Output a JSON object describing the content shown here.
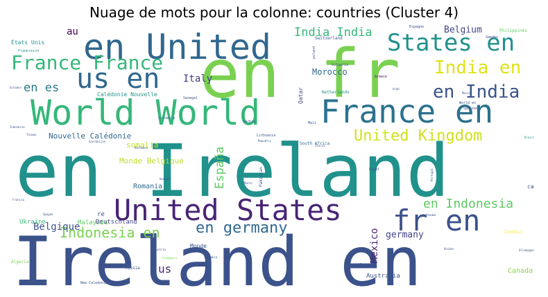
{
  "title": "Nuage de mots pour la colonne: countries (Cluster 4)",
  "chart_data": {
    "type": "wordcloud",
    "title": "Nuage de mots pour la colonne: countries (Cluster 4)",
    "background": "#ffffff",
    "colormap": "viridis",
    "words": [
      {
        "text": "en Ireland",
        "size": 100,
        "color": "#21918c"
      },
      {
        "text": "Ireland en",
        "size": 95,
        "color": "#3b528b"
      },
      {
        "text": "en fr",
        "size": 92,
        "color": "#7ad151"
      },
      {
        "text": "World World",
        "size": 50,
        "color": "#35b779"
      },
      {
        "text": "en United",
        "size": 50,
        "color": "#31688e"
      },
      {
        "text": "France en",
        "size": 46,
        "color": "#2c728e"
      },
      {
        "text": "United States",
        "size": 42,
        "color": "#482475"
      },
      {
        "text": "fr en",
        "size": 42,
        "color": "#3b528b"
      },
      {
        "text": "us en",
        "size": 40,
        "color": "#31688e"
      },
      {
        "text": "States en",
        "size": 34,
        "color": "#21918c"
      },
      {
        "text": "France France",
        "size": 28,
        "color": "#35b779"
      },
      {
        "text": "India en",
        "size": 26,
        "color": "#dde318"
      },
      {
        "text": "en India",
        "size": 26,
        "color": "#3b528b"
      },
      {
        "text": "United Kingdom",
        "size": 22,
        "color": "#d0e11c"
      },
      {
        "text": "en germany",
        "size": 22,
        "color": "#31688e"
      },
      {
        "text": "Indonesia en",
        "size": 20,
        "color": "#7ad151"
      },
      {
        "text": "en Indonesia",
        "size": 18,
        "color": "#5ec962"
      },
      {
        "text": "España",
        "size": 17,
        "color": "#5ec962"
      },
      {
        "text": "India India",
        "size": 17,
        "color": "#35b779"
      },
      {
        "text": "en es",
        "size": 17,
        "color": "#2a788e"
      },
      {
        "text": "Mexico",
        "size": 14,
        "color": "#482878"
      },
      {
        "text": "Belgique",
        "size": 14,
        "color": "#3b528b"
      },
      {
        "text": "Italy",
        "size": 14,
        "color": "#443983"
      },
      {
        "text": "Belgium",
        "size": 13,
        "color": "#414487"
      },
      {
        "text": "germany",
        "size": 13,
        "color": "#414487"
      },
      {
        "text": "us",
        "size": 16,
        "color": "#482475"
      },
      {
        "text": "au",
        "size": 14,
        "color": "#440154"
      },
      {
        "text": "Morocco",
        "size": 12,
        "color": "#31688e"
      },
      {
        "text": "Nouvelle Calédonie",
        "size": 11,
        "color": "#31688e"
      },
      {
        "text": "Monde Belgique",
        "size": 11,
        "color": "#bddf26"
      },
      {
        "text": "somalia",
        "size": 11,
        "color": "#bddf26"
      },
      {
        "text": "Romania",
        "size": 10,
        "color": "#31688e"
      },
      {
        "text": "Deutschland",
        "size": 9,
        "color": "#414487"
      },
      {
        "text": "Malaysia",
        "size": 9,
        "color": "#5ec962"
      },
      {
        "text": "Ukraine",
        "size": 9,
        "color": "#35b779"
      },
      {
        "text": "Canada",
        "size": 10,
        "color": "#86d549"
      },
      {
        "text": "Australia",
        "size": 9,
        "color": "#3b528b"
      },
      {
        "text": "Calédonie Nouvelle",
        "size": 8,
        "color": "#21918c"
      },
      {
        "text": "États Unis",
        "size": 8,
        "color": "#21918c"
      },
      {
        "text": "Qatar",
        "size": 8,
        "color": "#414487"
      },
      {
        "text": "Monde",
        "size": 8,
        "color": "#3b528b"
      },
      {
        "text": "re",
        "size": 9,
        "color": "#3b528b"
      },
      {
        "text": "ca",
        "size": 8,
        "color": "#3b528b"
      },
      {
        "text": "Netherlands",
        "size": 6,
        "color": "#21918c"
      },
      {
        "text": "South Africa",
        "size": 6,
        "color": "#31688e"
      },
      {
        "text": "Switzerland",
        "size": 6,
        "color": "#3b528b"
      },
      {
        "text": "Philippines",
        "size": 6,
        "color": "#5ec962"
      },
      {
        "text": "Frankreich",
        "size": 5,
        "color": "#21918c"
      },
      {
        "text": "Colombia",
        "size": 5,
        "color": "#31688e"
      },
      {
        "text": "Lithuania",
        "size": 5,
        "color": "#3b528b"
      },
      {
        "text": "Greece",
        "size": 5,
        "color": "#440154"
      },
      {
        "text": "Chile",
        "size": 6,
        "color": "#3b528b"
      },
      {
        "text": "New Caledonia",
        "size": 5,
        "color": "#3b528b"
      },
      {
        "text": "Algeria",
        "size": 6,
        "color": "#7ad151"
      },
      {
        "text": "russia",
        "size": 6,
        "color": "#3b528b"
      },
      {
        "text": "Czechia",
        "size": 6,
        "color": "#fde725"
      },
      {
        "text": "Pakistan",
        "size": 6,
        "color": "#3b528b"
      },
      {
        "text": "Espagne",
        "size": 5,
        "color": "#3b528b"
      },
      {
        "text": "Senegal",
        "size": 5,
        "color": "#3b528b"
      },
      {
        "text": "Serbia",
        "size": 5,
        "color": "#3b528b"
      },
      {
        "text": "Mali",
        "size": 5,
        "color": "#3b528b"
      },
      {
        "text": "Egypt",
        "size": 5,
        "color": "#3b528b"
      },
      {
        "text": "Sweden",
        "size": 5,
        "color": "#3b528b"
      },
      {
        "text": "Spanien",
        "size": 5,
        "color": "#3b528b"
      },
      {
        "text": "World en",
        "size": 5,
        "color": "#3b528b"
      },
      {
        "text": "Mexico",
        "size": 4,
        "color": "#3b528b"
      },
      {
        "text": "bulgaria",
        "size": 5,
        "color": "#3b528b"
      },
      {
        "text": "poland",
        "size": 5,
        "color": "#3b528b"
      },
      {
        "text": "Hungary",
        "size": 4,
        "color": "#3b528b"
      },
      {
        "text": "Barbados",
        "size": 4,
        "color": "#3b528b"
      },
      {
        "text": "Azerbaijan",
        "size": 4,
        "color": "#3b528b"
      },
      {
        "text": "Indonesie",
        "size": 4,
        "color": "#3b528b"
      },
      {
        "text": "Taiwan",
        "size": 4,
        "color": "#3b528b"
      },
      {
        "text": "Estados",
        "size": 4,
        "color": "#3b528b"
      },
      {
        "text": "Francia",
        "size": 4,
        "color": "#3b528b"
      },
      {
        "text": "Spagna",
        "size": 4,
        "color": "#3b528b"
      },
      {
        "text": "Italia",
        "size": 4,
        "color": "#3b528b"
      },
      {
        "text": "Unidos",
        "size": 4,
        "color": "#3b528b"
      },
      {
        "text": "Allemagne",
        "size": 4,
        "color": "#3b528b"
      },
      {
        "text": "Singapore",
        "size": 4,
        "color": "#7ad151"
      },
      {
        "text": "Austria",
        "size": 4,
        "color": "#3b528b"
      },
      {
        "text": "Portugal",
        "size": 4,
        "color": "#3b528b"
      },
      {
        "text": "Panama",
        "size": 4,
        "color": "#3b528b"
      },
      {
        "text": "Arab",
        "size": 4,
        "color": "#3b528b"
      },
      {
        "text": "Brasil",
        "size": 4,
        "color": "#21918c"
      },
      {
        "text": "Republic",
        "size": 4,
        "color": "#3b528b"
      },
      {
        "text": "Slovakia",
        "size": 4,
        "color": "#3b528b"
      },
      {
        "text": "Maroc",
        "size": 4,
        "color": "#3b528b"
      }
    ]
  }
}
